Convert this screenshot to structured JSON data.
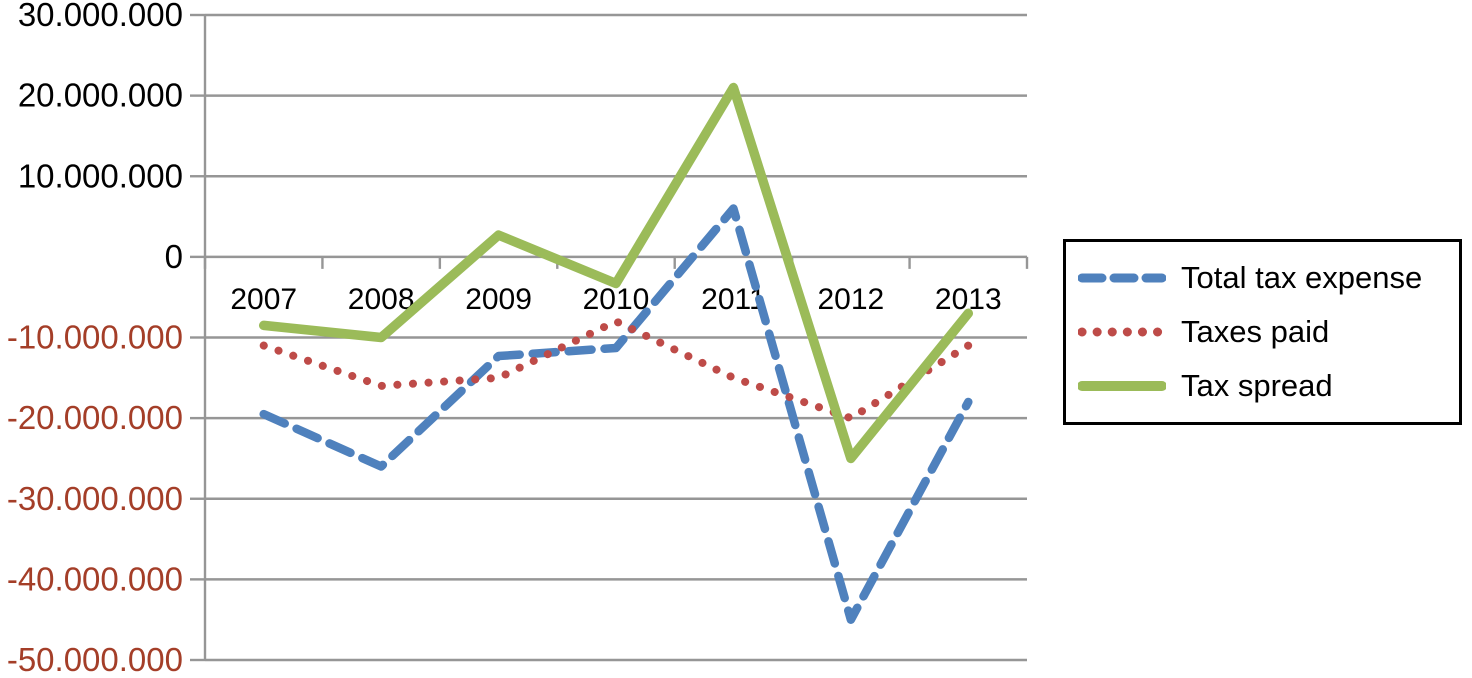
{
  "chart_data": {
    "type": "line",
    "title": "",
    "xlabel": "",
    "ylabel": "",
    "categories": [
      "2007",
      "2008",
      "2009",
      "2010",
      "2011",
      "2012",
      "2013"
    ],
    "series": [
      {
        "name": "Total tax expense",
        "color": "#4F81BD",
        "line_style": "dashed",
        "values": [
          -19500000,
          -26000000,
          -12300000,
          -11300000,
          6000000,
          -45000000,
          -18000000
        ]
      },
      {
        "name": "Taxes paid",
        "color": "#BE4B48",
        "line_style": "dotted",
        "values": [
          -11000000,
          -16000000,
          -15000000,
          -8000000,
          -15000000,
          -20000000,
          -11000000
        ]
      },
      {
        "name": "Tax spread",
        "color": "#9BBB59",
        "line_style": "solid",
        "values": [
          -8500000,
          -10000000,
          2700000,
          -3300000,
          21000000,
          -25000000,
          -7000000
        ]
      }
    ],
    "y_axis": {
      "min": -50000000,
      "max": 30000000,
      "tick_step": 10000000,
      "tick_labels": [
        "30.000.000",
        "20.000.000",
        "10.000.000",
        "0",
        "-10.000.000",
        "-20.000.000",
        "-30.000.000",
        "-40.000.000",
        "-50.000.000"
      ],
      "label_color": "#000000",
      "negative_label_color": "#A43E28"
    },
    "grid": true,
    "gridline_color": "#969696",
    "legend_position": "right"
  }
}
